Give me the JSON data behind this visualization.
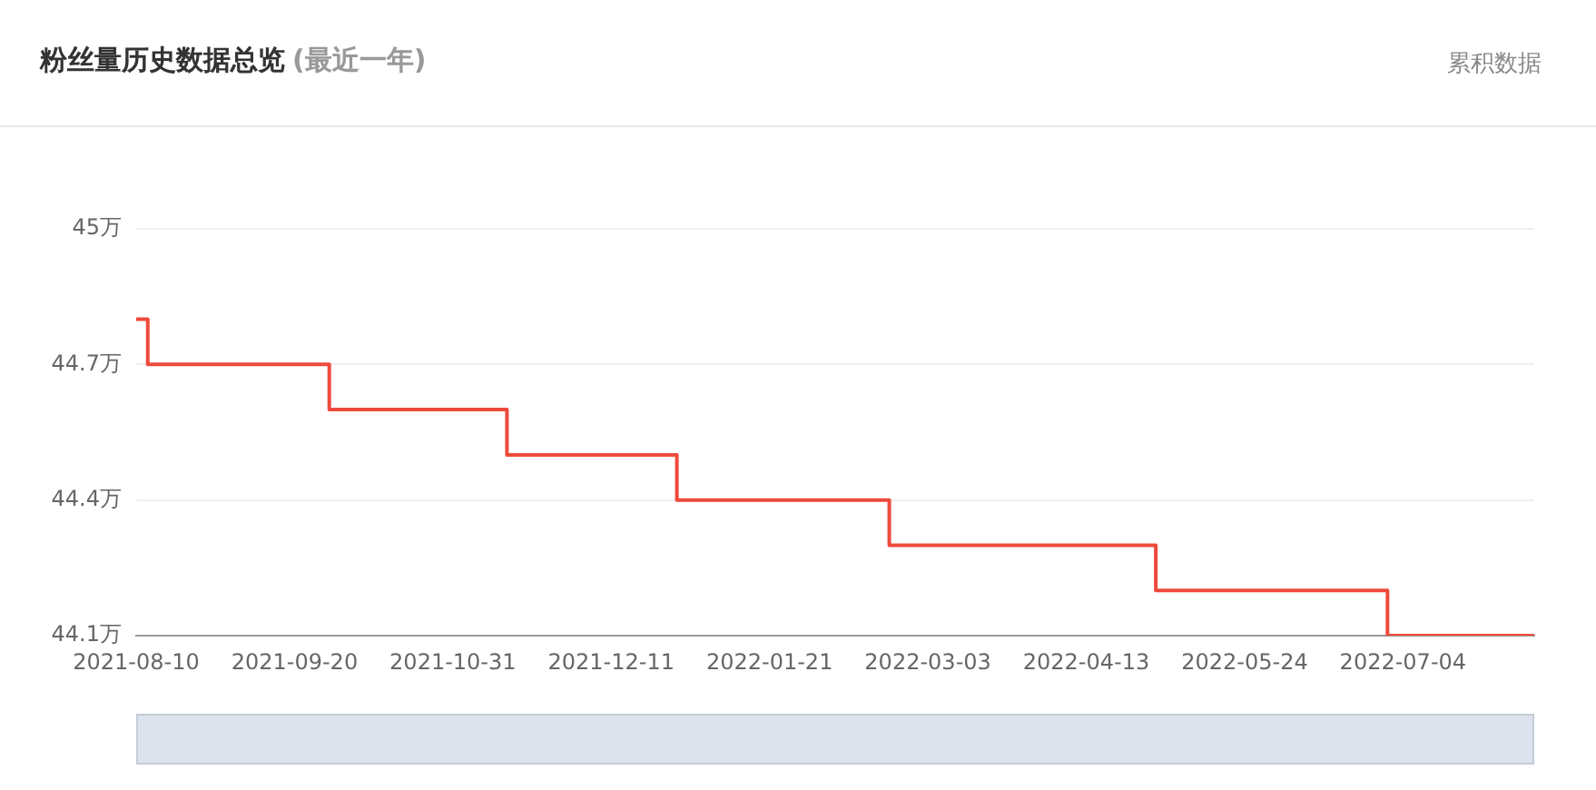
{
  "chart_data": {
    "type": "step",
    "title": "粉丝量历史数据总览",
    "subtitle": "(最近一年)",
    "annotations": [
      "累积数据"
    ],
    "x": [
      "2021-08-10",
      "2021-08-13",
      "2021-09-29",
      "2021-11-14",
      "2021-12-28",
      "2022-02-21",
      "2022-05-01",
      "2022-06-30",
      "2022-08-07"
    ],
    "series": [
      {
        "color": "#ee4a3c",
        "values": [
          44.8,
          44.7,
          44.6,
          44.5,
          44.4,
          44.3,
          44.2,
          44.1,
          44.1
        ]
      }
    ],
    "xlim": [
      "2021-08-10",
      "2022-08-07"
    ],
    "xticks": [
      "2021-08-10",
      "2021-09-20",
      "2021-10-31",
      "2021-12-11",
      "2022-01-21",
      "2022-03-03",
      "2022-04-13",
      "2022-05-24",
      "2022-07-04"
    ],
    "ylim": [
      44.1,
      45
    ],
    "yticks": [
      {
        "value": 44.1,
        "label": "44.1万"
      },
      {
        "value": 44.4,
        "label": "44.4万"
      },
      {
        "value": 44.7,
        "label": "44.7万"
      },
      {
        "value": 45,
        "label": "45万"
      }
    ],
    "grid": "y",
    "legend": false,
    "marker": "none",
    "line_style": "solid"
  }
}
